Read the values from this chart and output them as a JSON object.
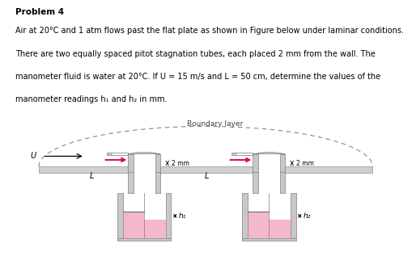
{
  "title_bold": "Problem 4",
  "text_lines": [
    "Air at 20°C and 1 atm flows past the flat plate as shown in Figure below under laminar conditions.",
    "There are two equally spaced pitot stagnation tubes, each placed 2 mm from the wall. The",
    "manometer fluid is water at 20°C. If U = 15 m/s and L = 50 cm, determine the values of the",
    "manometer readings h₁ and h₂ in mm."
  ],
  "bg_color": "#ffffff",
  "plate_color": "#d0d0d0",
  "plate_edge": "#909090",
  "tube_color": "#c8c8c8",
  "tube_edge": "#808080",
  "fluid_color": "#f4b8cc",
  "arrow_color": "#e8005a",
  "boundary_label": "Boundary layer",
  "label_2mm": "2 mm",
  "label_L": "L",
  "label_U": "U",
  "label_h1": "h₁",
  "label_h2": "h₂",
  "text_fontsize": 7.0,
  "title_fontsize": 7.5
}
